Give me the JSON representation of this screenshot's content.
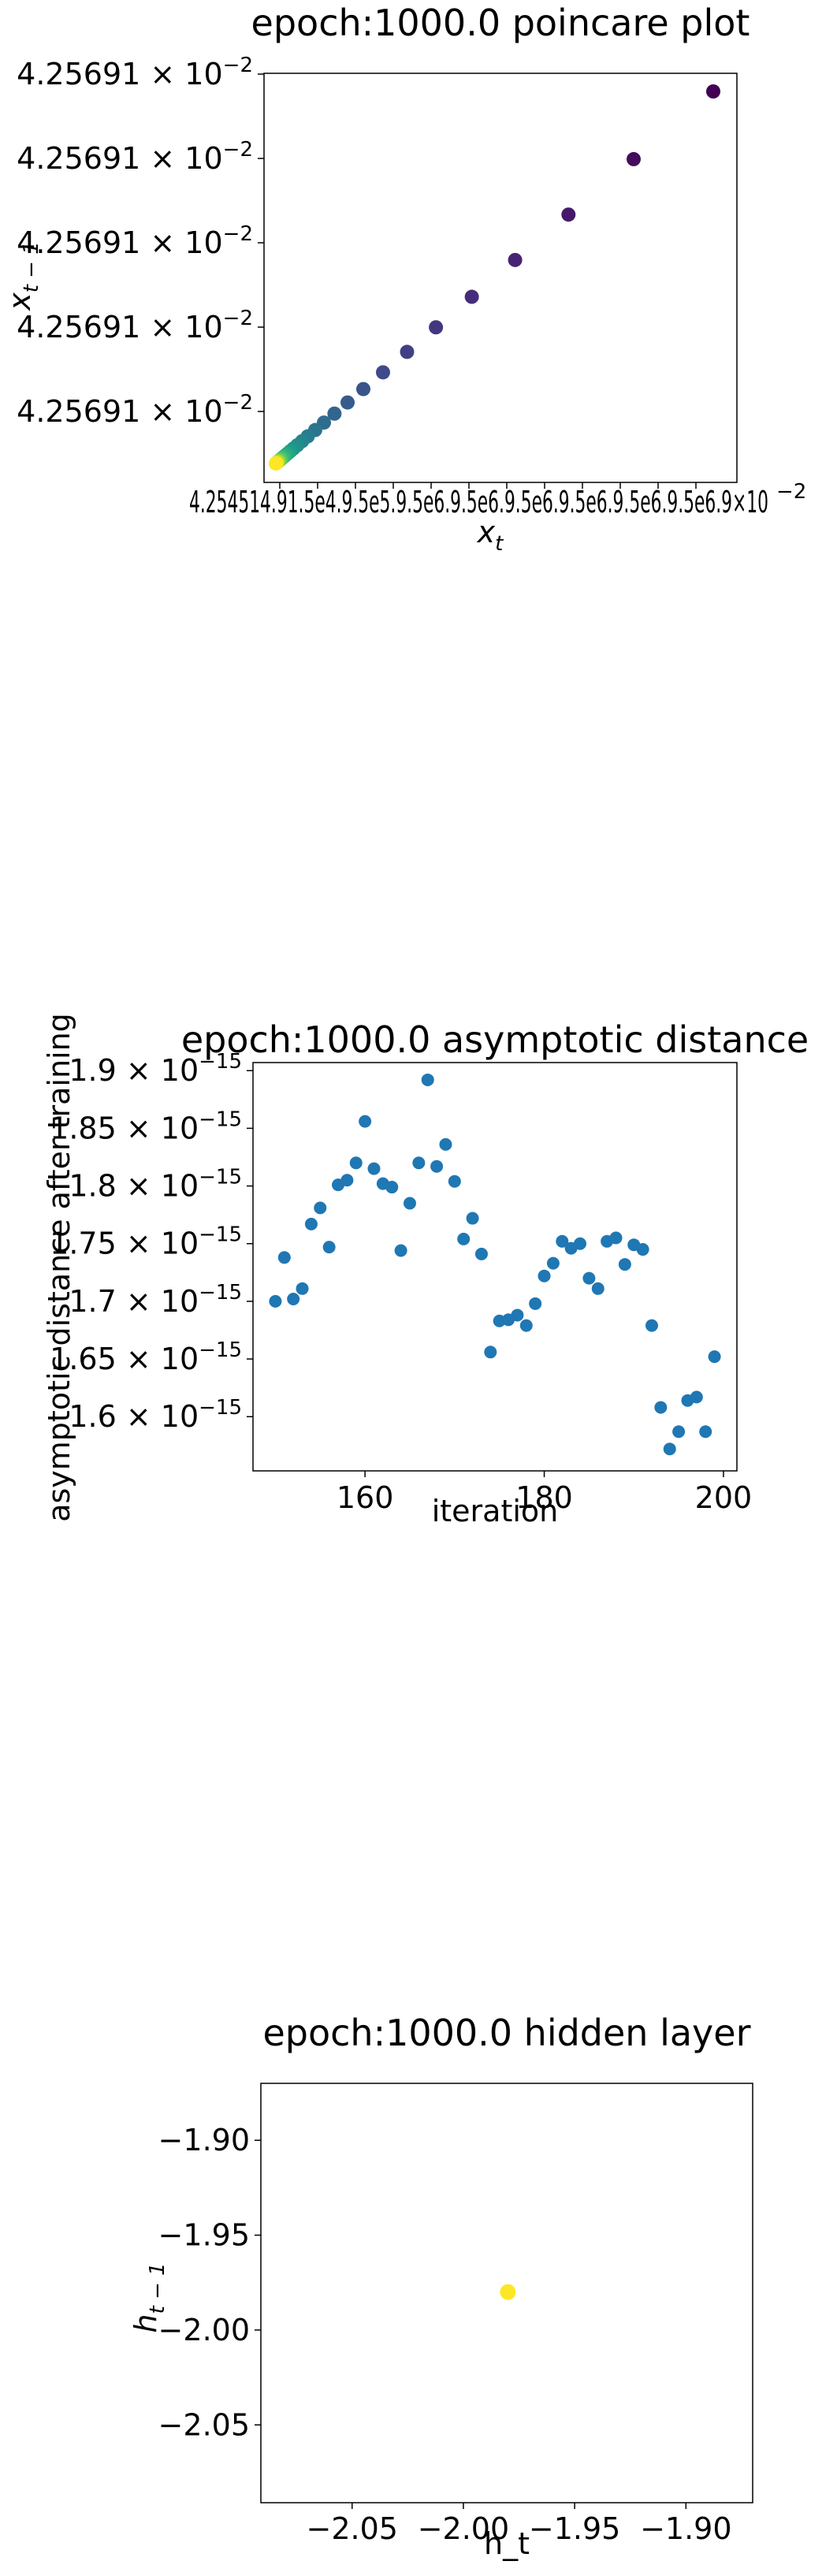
{
  "charts": [
    {
      "id": "poincare",
      "type": "scatter",
      "title": "epoch:1000.0 poincare plot",
      "xlabel": "x",
      "xlabel_sub": "t",
      "ylabel": "x",
      "ylabel_sub": "t − 1",
      "colormap": "viridis",
      "y_tick_mantissa": "4.25691",
      "y_tick_exponent": "−2",
      "y_tick_count": 5,
      "x_tick_text": "4.254514.91.5e4.9.5e5.9.5e6.9.5e6.9.5e6.9.5e6.9.5e6.9.5e6.9×10",
      "x_tick_exponent": "−2",
      "points": [
        {
          "x": 1.0,
          "y": 1.0
        },
        {
          "x": 0.818,
          "y": 0.818
        },
        {
          "x": 0.669,
          "y": 0.669
        },
        {
          "x": 0.547,
          "y": 0.547
        },
        {
          "x": 0.448,
          "y": 0.448
        },
        {
          "x": 0.366,
          "y": 0.366
        },
        {
          "x": 0.3,
          "y": 0.3
        },
        {
          "x": 0.245,
          "y": 0.245
        },
        {
          "x": 0.2,
          "y": 0.2
        },
        {
          "x": 0.164,
          "y": 0.164
        },
        {
          "x": 0.134,
          "y": 0.134
        },
        {
          "x": 0.11,
          "y": 0.11
        },
        {
          "x": 0.09,
          "y": 0.09
        },
        {
          "x": 0.073,
          "y": 0.073
        },
        {
          "x": 0.06,
          "y": 0.06
        },
        {
          "x": 0.049,
          "y": 0.049
        },
        {
          "x": 0.04,
          "y": 0.04
        },
        {
          "x": 0.033,
          "y": 0.033
        },
        {
          "x": 0.027,
          "y": 0.027
        },
        {
          "x": 0.022,
          "y": 0.022
        },
        {
          "x": 0.018,
          "y": 0.018
        },
        {
          "x": 0.015,
          "y": 0.015
        },
        {
          "x": 0.012,
          "y": 0.012
        },
        {
          "x": 0.01,
          "y": 0.01
        },
        {
          "x": 0.008,
          "y": 0.008
        },
        {
          "x": 0.006,
          "y": 0.006
        },
        {
          "x": 0.005,
          "y": 0.005
        },
        {
          "x": 0.004,
          "y": 0.004
        },
        {
          "x": 0.003,
          "y": 0.003
        },
        {
          "x": 0.002,
          "y": 0.002
        },
        {
          "x": 0.001,
          "y": 0.001
        },
        {
          "x": 0.0,
          "y": 0.0
        }
      ]
    },
    {
      "id": "asymptotic",
      "type": "scatter",
      "title": "epoch:1000.0 asymptotic distance",
      "xlabel": "iteration",
      "ylabel": "asymptotic distance after training",
      "color": "#1f77b4",
      "xlim": [
        147.5,
        201.5
      ],
      "ylim": [
        1.553,
        1.907
      ],
      "x_ticks": [
        160,
        180,
        200
      ],
      "y_ticks": [
        1.6,
        1.65,
        1.7,
        1.75,
        1.8,
        1.85,
        1.9
      ],
      "y_tick_labels": [
        "1.6",
        "1.65",
        "1.7",
        "1.75",
        "1.8",
        "1.85",
        "1.9"
      ],
      "y_tick_exponent": "−15",
      "x": [
        150,
        151,
        152,
        153,
        154,
        155,
        156,
        157,
        158,
        159,
        160,
        161,
        162,
        163,
        164,
        165,
        166,
        167,
        168,
        169,
        170,
        171,
        172,
        173,
        174,
        175,
        176,
        177,
        178,
        179,
        180,
        181,
        182,
        183,
        184,
        185,
        186,
        187,
        188,
        189,
        190,
        191,
        192,
        193,
        194,
        195,
        196,
        197,
        198,
        199
      ],
      "y": [
        1.7,
        1.738,
        1.702,
        1.711,
        1.767,
        1.781,
        1.747,
        1.801,
        1.805,
        1.82,
        1.856,
        1.815,
        1.802,
        1.799,
        1.744,
        1.785,
        1.82,
        1.892,
        1.817,
        1.836,
        1.804,
        1.754,
        1.772,
        1.741,
        1.656,
        1.683,
        1.684,
        1.688,
        1.679,
        1.698,
        1.722,
        1.733,
        1.752,
        1.746,
        1.75,
        1.72,
        1.711,
        1.752,
        1.755,
        1.732,
        1.749,
        1.745,
        1.679,
        1.608,
        1.572,
        1.587,
        1.614,
        1.617,
        1.587,
        1.652
      ]
    },
    {
      "id": "hidden",
      "type": "scatter",
      "title": "epoch:1000.0 hidden layer",
      "xlabel": "h_t",
      "ylabel": "h",
      "ylabel_sub": "t − 1",
      "color": "#fde725",
      "xlim": [
        -2.091,
        -1.87
      ],
      "ylim": [
        -2.091,
        -1.87
      ],
      "x_ticks": [
        -2.05,
        -2.0,
        -1.95,
        -1.9
      ],
      "x_tick_labels": [
        "−2.05",
        "−2.00",
        "−1.95",
        "−1.90"
      ],
      "y_ticks": [
        -2.05,
        -2.0,
        -1.95,
        -1.9
      ],
      "y_tick_labels": [
        "−2.05",
        "−2.00",
        "−1.95",
        "−1.90"
      ],
      "points": [
        {
          "x": -1.98,
          "y": -1.98
        }
      ]
    }
  ]
}
